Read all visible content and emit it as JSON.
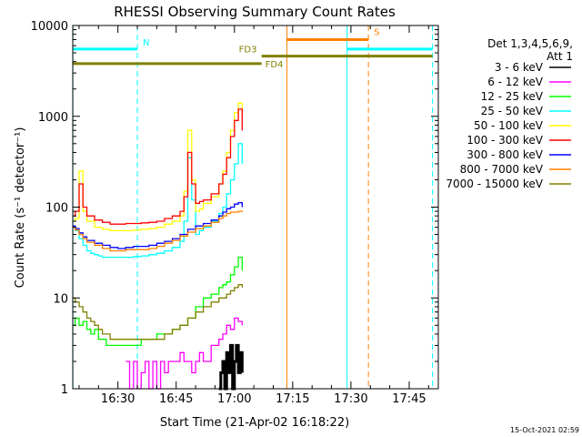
{
  "chart_data": {
    "type": "line",
    "title": "RHESSI Observing Summary Count Rates",
    "xlabel": "Start Time (21-Apr-02 16:18:22)",
    "ylabel": "Count Rate (s⁻¹ detector⁻¹)",
    "yscale": "log",
    "ylim": [
      1,
      10000
    ],
    "xlim_minutes_after_1600": [
      18.37,
      112.5
    ],
    "x_ticks": [
      {
        "minute": 30,
        "label": "16:30"
      },
      {
        "minute": 45,
        "label": "16:45"
      },
      {
        "minute": 60,
        "label": "17:00"
      },
      {
        "minute": 75,
        "label": "17:15"
      },
      {
        "minute": 90,
        "label": "17:30"
      },
      {
        "minute": 105,
        "label": "17:45"
      }
    ],
    "y_ticks": [
      {
        "value": 1,
        "label": "1"
      },
      {
        "value": 10,
        "label": "10"
      },
      {
        "value": 100,
        "label": "100"
      },
      {
        "value": 1000,
        "label": "1000"
      },
      {
        "value": 10000,
        "label": "10000"
      }
    ],
    "legend_header": [
      "Det 1,3,4,5,6,9,",
      "Att 1"
    ],
    "legend_position": "right",
    "series": [
      {
        "name": "3 - 6 keV",
        "color": "#000000",
        "x": [
          56.0,
          56.5,
          57.0,
          57.5,
          58.0,
          58.5,
          59.0,
          59.5,
          60.0,
          60.5,
          61.0,
          61.5,
          62.0
        ],
        "y": [
          1,
          1.5,
          2,
          1,
          2.5,
          1.5,
          3,
          1,
          2,
          3,
          1.5,
          2.5,
          1.5
        ]
      },
      {
        "name": "6 - 12 keV",
        "color": "#ff00ff",
        "x": [
          32,
          33,
          34,
          35,
          36,
          37,
          38,
          39,
          40,
          41,
          42,
          43,
          44,
          45,
          46,
          47,
          48,
          49,
          50,
          51,
          52,
          53,
          54,
          55,
          56,
          57,
          58,
          59,
          60,
          61,
          62
        ],
        "y": [
          2,
          1,
          2,
          1,
          1.5,
          2,
          1,
          2,
          1,
          2,
          1.5,
          2,
          2,
          2,
          2.5,
          2,
          2,
          1.5,
          2,
          2.5,
          2,
          2,
          3,
          3,
          3.5,
          4,
          5,
          4.5,
          6,
          5.5,
          5
        ]
      },
      {
        "name": "12 - 25 keV",
        "color": "#00ff00",
        "x": [
          18.4,
          19,
          20,
          21,
          22,
          23,
          24,
          25,
          26,
          27,
          28,
          30,
          32,
          34,
          36,
          38,
          40,
          42,
          44,
          46,
          48,
          50,
          52,
          54,
          56,
          57,
          58,
          59,
          60,
          61,
          62
        ],
        "y": [
          5,
          6,
          5,
          5.5,
          4.5,
          4,
          4.5,
          3.5,
          3.5,
          3,
          3,
          3,
          3,
          3,
          3.5,
          3.5,
          4,
          4,
          4.5,
          5,
          6,
          8,
          10,
          11,
          13,
          14,
          15,
          18,
          22,
          28,
          20
        ]
      },
      {
        "name": "25 - 50 keV",
        "color": "#00ffff",
        "x": [
          18.4,
          19,
          20,
          21,
          22,
          23,
          24,
          25,
          26,
          28,
          30,
          32,
          34,
          36,
          38,
          40,
          42,
          44,
          46,
          47,
          48,
          49,
          50,
          51,
          52,
          54,
          56,
          57,
          58,
          59,
          60,
          61,
          62
        ],
        "y": [
          60,
          55,
          45,
          38,
          33,
          31,
          30,
          29,
          28,
          28,
          28,
          28,
          28.5,
          29,
          30,
          31,
          33,
          36,
          42,
          70,
          350,
          120,
          50,
          55,
          60,
          70,
          85,
          100,
          140,
          200,
          300,
          500,
          300
        ]
      },
      {
        "name": "50 - 100 keV",
        "color": "#ffff00",
        "x": [
          18.4,
          19,
          20,
          21,
          22,
          24,
          26,
          28,
          30,
          32,
          34,
          36,
          38,
          40,
          42,
          44,
          46,
          47,
          48,
          49,
          50,
          51,
          52,
          54,
          56,
          57,
          58,
          59,
          60,
          61,
          62
        ],
        "y": [
          70,
          75,
          250,
          90,
          70,
          60,
          57,
          55,
          55,
          55,
          56,
          57,
          58,
          60,
          65,
          70,
          80,
          150,
          700,
          200,
          90,
          95,
          110,
          130,
          180,
          250,
          400,
          700,
          1100,
          1400,
          1000
        ]
      },
      {
        "name": "100 - 300 keV",
        "color": "#ff0000",
        "x": [
          18.4,
          19,
          20,
          21,
          22,
          24,
          26,
          28,
          30,
          32,
          34,
          36,
          38,
          40,
          42,
          44,
          46,
          47,
          48,
          49,
          50,
          51,
          52,
          54,
          56,
          57,
          58,
          59,
          60,
          61,
          62
        ],
        "y": [
          80,
          90,
          180,
          100,
          80,
          72,
          68,
          65,
          65,
          66,
          66,
          67,
          68,
          70,
          75,
          80,
          90,
          130,
          400,
          180,
          110,
          115,
          120,
          140,
          180,
          230,
          350,
          600,
          900,
          1200,
          700
        ]
      },
      {
        "name": "300 - 800 keV",
        "color": "#0000ff",
        "x": [
          18.4,
          19,
          20,
          21,
          22,
          24,
          26,
          28,
          30,
          32,
          34,
          36,
          38,
          40,
          42,
          44,
          46,
          48,
          50,
          52,
          54,
          56,
          57,
          58,
          59,
          60,
          61,
          62
        ],
        "y": [
          62,
          58,
          52,
          47,
          43,
          40,
          38,
          36,
          35,
          36,
          37,
          37,
          38,
          40,
          42,
          45,
          50,
          57,
          62,
          66,
          72,
          80,
          88,
          96,
          100,
          108,
          112,
          100
        ]
      },
      {
        "name": "800 - 7000 keV",
        "color": "#ff8000",
        "x": [
          18.4,
          19,
          20,
          21,
          22,
          24,
          26,
          28,
          30,
          32,
          34,
          36,
          38,
          40,
          42,
          44,
          46,
          48,
          50,
          52,
          54,
          56,
          57,
          58,
          59,
          60,
          61,
          62
        ],
        "y": [
          60,
          56,
          50,
          45,
          41,
          38,
          35,
          33,
          33,
          34,
          34,
          34,
          35,
          37,
          40,
          43,
          48,
          53,
          58,
          62,
          68,
          75,
          80,
          85,
          88,
          88,
          90,
          88
        ]
      },
      {
        "name": "7000 - 15000 keV",
        "color": "#808000",
        "x": [
          18.4,
          19,
          20,
          21,
          22,
          23,
          24,
          25,
          26,
          27,
          28,
          30,
          32,
          34,
          36,
          38,
          40,
          42,
          44,
          46,
          48,
          50,
          52,
          54,
          56,
          58,
          59,
          60,
          61,
          62
        ],
        "y": [
          10,
          9,
          8,
          7,
          6,
          5.5,
          5,
          4.5,
          4,
          4,
          3.5,
          3.5,
          3.5,
          3.5,
          3.5,
          3.5,
          3.5,
          4,
          4.5,
          5,
          6,
          7,
          8,
          9,
          10,
          11,
          12,
          13,
          14,
          13
        ]
      }
    ],
    "state_bars": [
      {
        "label": "N",
        "color": "#00ffff",
        "y": 5500,
        "x": [
          18.4,
          35.0
        ]
      },
      {
        "label": "",
        "color": "#00ffff",
        "y": 5500,
        "x": [
          89.0,
          111.0
        ]
      },
      {
        "label": "S",
        "color": "#ff8000",
        "y": 7000,
        "x": [
          73.5,
          94.5
        ]
      },
      {
        "label": "FD3",
        "color": "#808000",
        "y": 4600,
        "x": [
          67.0,
          111.0
        ]
      },
      {
        "label": "FD4",
        "color": "#808000",
        "y": 3800,
        "x": [
          18.4,
          67.0
        ]
      }
    ],
    "vertical_lines": [
      {
        "color": "#00ffff",
        "style": "solid",
        "x": 18.4
      },
      {
        "color": "#00ffff",
        "style": "dashed",
        "x": 35.0
      },
      {
        "color": "#00ffff",
        "style": "solid",
        "x": 89.0
      },
      {
        "color": "#00ffff",
        "style": "dashed",
        "x": 111.0
      },
      {
        "color": "#ff8000",
        "style": "solid",
        "x": 73.5
      },
      {
        "color": "#ff8000",
        "style": "dashed",
        "x": 94.5
      }
    ],
    "footer_timestamp": "15-Oct-2021 02:59"
  }
}
